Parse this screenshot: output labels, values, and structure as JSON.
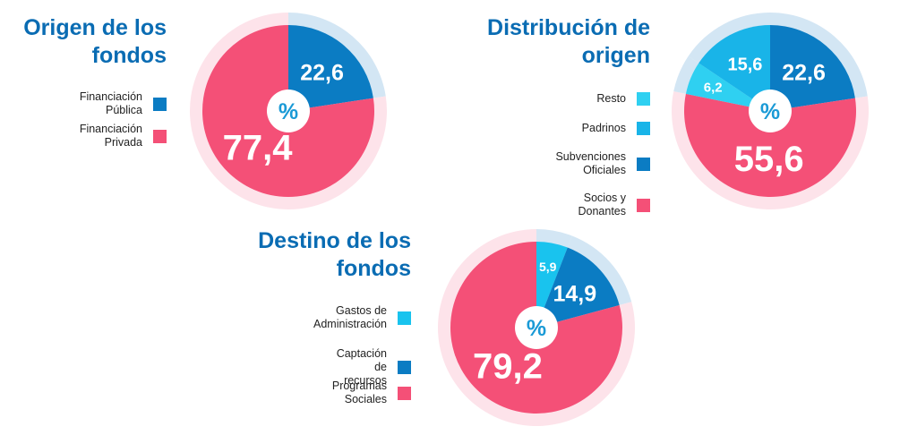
{
  "colors": {
    "pink": "#f45077",
    "pink_halo": "#fde3ea",
    "dark_blue": "#0b7cc3",
    "blue_halo": "#d3e6f4",
    "cyan": "#19c3ee",
    "light_cyan": "#2fd0f1",
    "title_blue": "#0a6cb3",
    "center_text": "#1a9ad6"
  },
  "chart_data": [
    {
      "type": "pie",
      "title": "Origen de los fondos",
      "center_label": "%",
      "slices": [
        {
          "name": "Financiación Pública",
          "value": 22.6,
          "label": "22,6",
          "color": "#0b7cc3"
        },
        {
          "name": "Financiación Privada",
          "value": 77.4,
          "label": "77,4",
          "color": "#f45077"
        }
      ],
      "legend": [
        {
          "label": "Financiación Pública",
          "color": "#0b7cc3"
        },
        {
          "label": "Financiación Privada",
          "color": "#f45077"
        }
      ]
    },
    {
      "type": "pie",
      "title": "Distribución de origen",
      "center_label": "%",
      "slices": [
        {
          "name": "Subvenciones Oficiales",
          "value": 22.6,
          "label": "22,6",
          "color": "#0b7cc3"
        },
        {
          "name": "Socios y Donantes",
          "value": 55.6,
          "label": "55,6",
          "color": "#f45077"
        },
        {
          "name": "Resto",
          "value": 6.2,
          "label": "6,2",
          "color": "#2fd0f1"
        },
        {
          "name": "Padrinos",
          "value": 15.6,
          "label": "15,6",
          "color": "#19b4e8"
        }
      ],
      "legend": [
        {
          "label": "Resto",
          "color": "#2fd0f1"
        },
        {
          "label": "Padrinos",
          "color": "#19b4e8"
        },
        {
          "label": "Subvenciones\nOficiales",
          "color": "#0b7cc3"
        },
        {
          "label": "Socios y Donantes",
          "color": "#f45077"
        }
      ]
    },
    {
      "type": "pie",
      "title": "Destino de los fondos",
      "center_label": "%",
      "slices": [
        {
          "name": "Gastos de Administración",
          "value": 5.9,
          "label": "5,9",
          "color": "#19c3ee"
        },
        {
          "name": "Captación de recursos",
          "value": 14.9,
          "label": "14,9",
          "color": "#0b7cc3"
        },
        {
          "name": "Programas Sociales",
          "value": 79.2,
          "label": "79,2",
          "color": "#f45077"
        }
      ],
      "legend": [
        {
          "label": "Gastos de\nAdministración",
          "color": "#19c3ee"
        },
        {
          "label": "Captación de recursos",
          "color": "#0b7cc3"
        },
        {
          "label": "Programas Sociales",
          "color": "#f45077"
        }
      ]
    }
  ]
}
